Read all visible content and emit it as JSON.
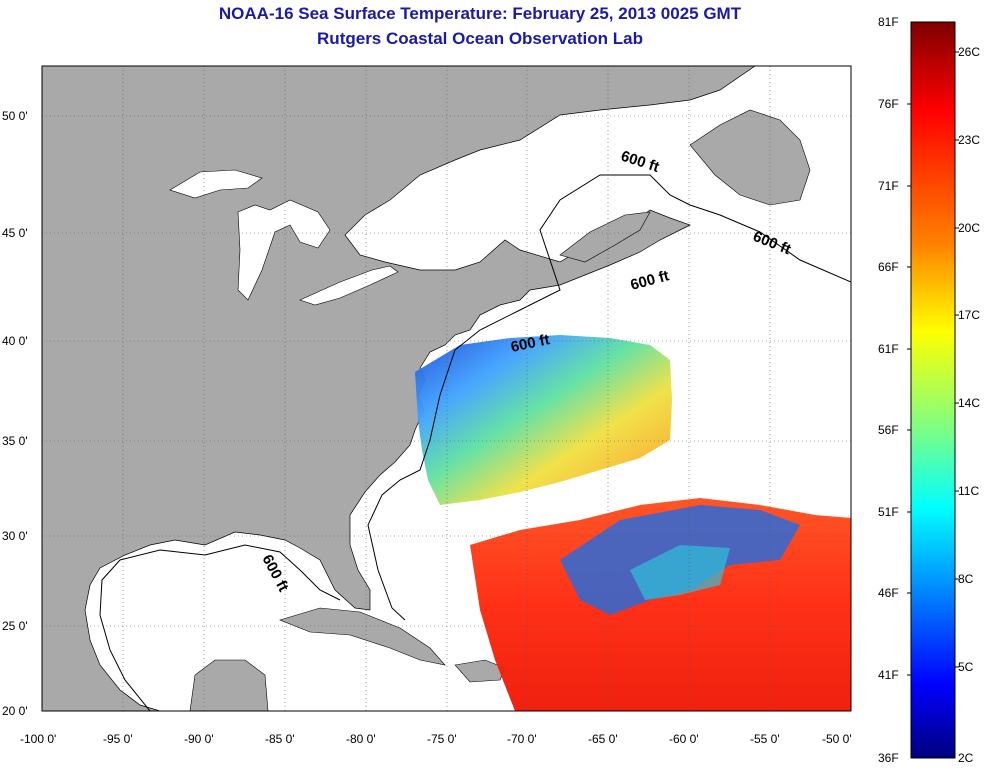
{
  "title": "NOAA-16 Sea Surface Temperature:  February 25, 2013 0025 GMT",
  "subtitle": "Rutgers Coastal Ocean Observation Lab",
  "map": {
    "lon_ticks": [
      "-100 0'",
      "-95 0'",
      "-90 0'",
      "-85 0'",
      "-80 0'",
      "-75 0'",
      "-70 0'",
      "-65 0'",
      "-60 0'",
      "-55 0'",
      "-50 0'"
    ],
    "lat_ticks": [
      "20 0'",
      "25 0'",
      "30 0'",
      "35 0'",
      "40 0'",
      "45 0'",
      "50 0'"
    ],
    "isobath_labels": [
      "600 ft",
      "600 ft",
      "600 ft",
      "600 ft",
      "600 ft"
    ],
    "land_color": "#a9a9a9",
    "ocean_color": "#ffffff"
  },
  "colorbar": {
    "fahrenheit_labels": [
      "81F",
      "76F",
      "71F",
      "66F",
      "61F",
      "56F",
      "51F",
      "46F",
      "41F",
      "36F"
    ],
    "celsius_labels": [
      "26C",
      "23C",
      "20C",
      "17C",
      "14C",
      "11C",
      "8C",
      "5C",
      "2C"
    ],
    "gradient_colors": [
      "#7f0000",
      "#ff0000",
      "#ff8000",
      "#ffff00",
      "#80ff80",
      "#00ffff",
      "#0080ff",
      "#0000ff",
      "#00007f"
    ]
  }
}
